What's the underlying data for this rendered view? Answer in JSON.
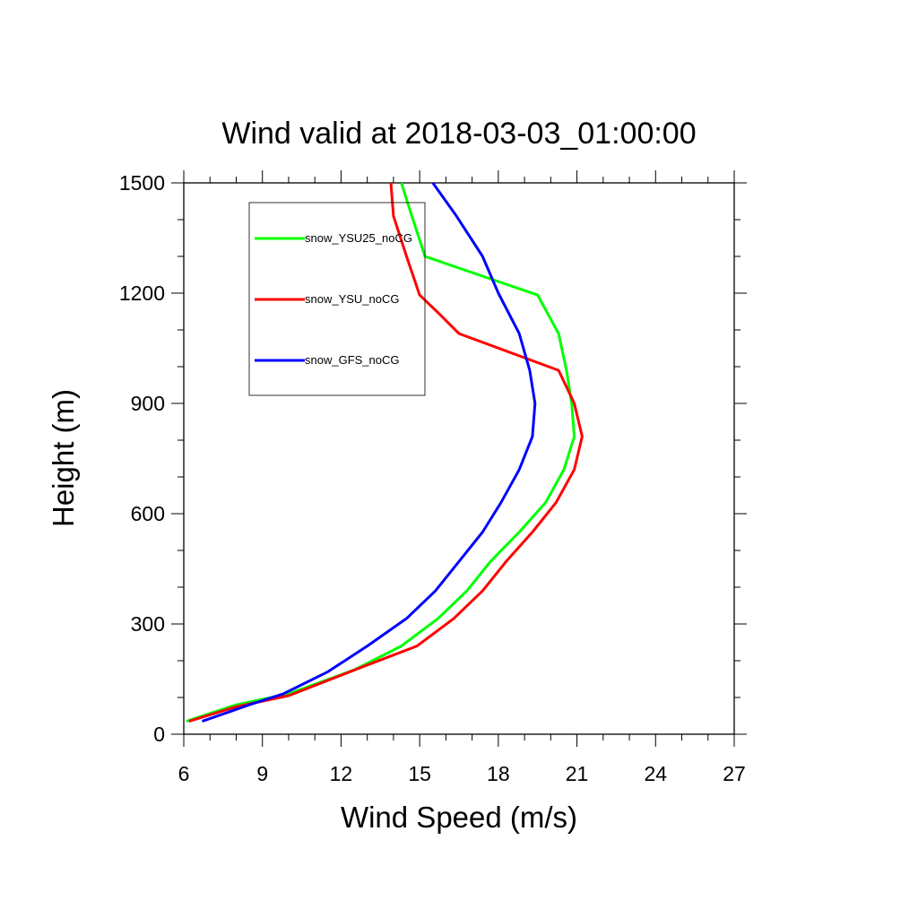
{
  "chart_data": {
    "type": "line",
    "title": "Wind valid at 2018-03-03_01:00:00",
    "xlabel": "Wind Speed (m/s)",
    "ylabel": "Height (m)",
    "xlim": [
      6,
      27
    ],
    "ylim": [
      0,
      1500
    ],
    "xticks": [
      6,
      9,
      12,
      15,
      18,
      21,
      24,
      27
    ],
    "yticks": [
      0,
      300,
      600,
      900,
      1200,
      1500
    ],
    "legend_position": "top-left",
    "grid": false,
    "series": [
      {
        "name": "snow_YSU25_noCG",
        "color": "#00ff00",
        "points": [
          [
            6.1,
            35
          ],
          [
            8.0,
            80
          ],
          [
            10.0,
            110
          ],
          [
            12.5,
            175
          ],
          [
            14.3,
            240
          ],
          [
            15.7,
            315
          ],
          [
            16.8,
            390
          ],
          [
            17.7,
            470
          ],
          [
            18.8,
            550
          ],
          [
            19.8,
            630
          ],
          [
            20.5,
            720
          ],
          [
            20.9,
            810
          ],
          [
            20.8,
            900
          ],
          [
            20.6,
            990
          ],
          [
            20.3,
            1090
          ],
          [
            19.5,
            1195
          ],
          [
            15.2,
            1300
          ],
          [
            14.7,
            1410
          ],
          [
            14.3,
            1500
          ]
        ]
      },
      {
        "name": "snow_YSU_noCG",
        "color": "#ff0000",
        "points": [
          [
            6.2,
            35
          ],
          [
            8.0,
            75
          ],
          [
            10.0,
            105
          ],
          [
            12.7,
            180
          ],
          [
            14.9,
            240
          ],
          [
            16.3,
            315
          ],
          [
            17.4,
            390
          ],
          [
            18.3,
            470
          ],
          [
            19.3,
            550
          ],
          [
            20.2,
            630
          ],
          [
            20.9,
            720
          ],
          [
            21.2,
            810
          ],
          [
            20.9,
            900
          ],
          [
            20.3,
            990
          ],
          [
            16.5,
            1090
          ],
          [
            15.8,
            1140
          ],
          [
            15.0,
            1195
          ],
          [
            14.5,
            1300
          ],
          [
            14.0,
            1410
          ],
          [
            13.9,
            1500
          ]
        ]
      },
      {
        "name": "snow_GFS_noCG",
        "color": "#0000ff",
        "points": [
          [
            6.7,
            35
          ],
          [
            8.5,
            80
          ],
          [
            9.8,
            110
          ],
          [
            11.5,
            170
          ],
          [
            13.0,
            240
          ],
          [
            14.5,
            315
          ],
          [
            15.6,
            390
          ],
          [
            16.5,
            470
          ],
          [
            17.4,
            550
          ],
          [
            18.1,
            630
          ],
          [
            18.8,
            720
          ],
          [
            19.3,
            810
          ],
          [
            19.4,
            900
          ],
          [
            19.2,
            990
          ],
          [
            18.8,
            1090
          ],
          [
            18.0,
            1200
          ],
          [
            17.4,
            1300
          ],
          [
            16.4,
            1410
          ],
          [
            15.5,
            1500
          ]
        ]
      }
    ]
  }
}
